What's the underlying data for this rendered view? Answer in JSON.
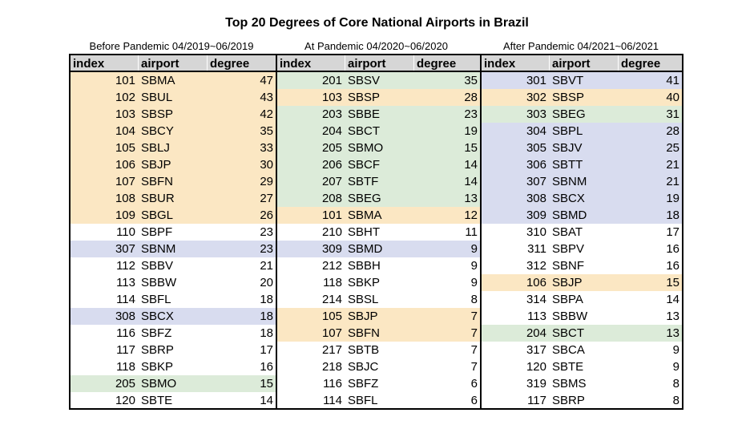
{
  "title": "Top 20 Degrees of Core National Airports in Brazil",
  "colors": {
    "yellow": "#fbe7c3",
    "green": "#dcebd9",
    "blue": "#d8dcef",
    "header": "#d6d6d6"
  },
  "column_headers": {
    "index": "index",
    "airport": "airport",
    "degree": "degree"
  },
  "panels": [
    {
      "period": "Before Pandemic 04/2019~06/2019",
      "rows": [
        {
          "index": "101",
          "airport": "SBMA",
          "degree": "47",
          "hl": "yellow"
        },
        {
          "index": "102",
          "airport": "SBUL",
          "degree": "43",
          "hl": "yellow"
        },
        {
          "index": "103",
          "airport": "SBSP",
          "degree": "42",
          "hl": "yellow"
        },
        {
          "index": "104",
          "airport": "SBCY",
          "degree": "35",
          "hl": "yellow"
        },
        {
          "index": "105",
          "airport": "SBLJ",
          "degree": "33",
          "hl": "yellow"
        },
        {
          "index": "106",
          "airport": "SBJP",
          "degree": "30",
          "hl": "yellow"
        },
        {
          "index": "107",
          "airport": "SBFN",
          "degree": "29",
          "hl": "yellow"
        },
        {
          "index": "108",
          "airport": "SBUR",
          "degree": "27",
          "hl": "yellow"
        },
        {
          "index": "109",
          "airport": "SBGL",
          "degree": "26",
          "hl": "yellow"
        },
        {
          "index": "110",
          "airport": "SBPF",
          "degree": "23",
          "hl": ""
        },
        {
          "index": "307",
          "airport": "SBNM",
          "degree": "23",
          "hl": "blue"
        },
        {
          "index": "112",
          "airport": "SBBV",
          "degree": "21",
          "hl": ""
        },
        {
          "index": "113",
          "airport": "SBBW",
          "degree": "20",
          "hl": ""
        },
        {
          "index": "114",
          "airport": "SBFL",
          "degree": "18",
          "hl": ""
        },
        {
          "index": "308",
          "airport": "SBCX",
          "degree": "18",
          "hl": "blue"
        },
        {
          "index": "116",
          "airport": "SBFZ",
          "degree": "18",
          "hl": ""
        },
        {
          "index": "117",
          "airport": "SBRP",
          "degree": "17",
          "hl": ""
        },
        {
          "index": "118",
          "airport": "SBKP",
          "degree": "16",
          "hl": ""
        },
        {
          "index": "205",
          "airport": "SBMO",
          "degree": "15",
          "hl": "green"
        },
        {
          "index": "120",
          "airport": "SBTE",
          "degree": "14",
          "hl": ""
        }
      ]
    },
    {
      "period": "At Pandemic 04/2020~06/2020",
      "rows": [
        {
          "index": "201",
          "airport": "SBSV",
          "degree": "35",
          "hl": "green"
        },
        {
          "index": "103",
          "airport": "SBSP",
          "degree": "28",
          "hl": "yellow"
        },
        {
          "index": "203",
          "airport": "SBBE",
          "degree": "23",
          "hl": "green"
        },
        {
          "index": "204",
          "airport": "SBCT",
          "degree": "19",
          "hl": "green"
        },
        {
          "index": "205",
          "airport": "SBMO",
          "degree": "15",
          "hl": "green"
        },
        {
          "index": "206",
          "airport": "SBCF",
          "degree": "14",
          "hl": "green"
        },
        {
          "index": "207",
          "airport": "SBTF",
          "degree": "14",
          "hl": "green"
        },
        {
          "index": "208",
          "airport": "SBEG",
          "degree": "13",
          "hl": "green"
        },
        {
          "index": "101",
          "airport": "SBMA",
          "degree": "12",
          "hl": "yellow"
        },
        {
          "index": "210",
          "airport": "SBHT",
          "degree": "11",
          "hl": ""
        },
        {
          "index": "309",
          "airport": "SBMD",
          "degree": "9",
          "hl": "blue"
        },
        {
          "index": "212",
          "airport": "SBBH",
          "degree": "9",
          "hl": ""
        },
        {
          "index": "118",
          "airport": "SBKP",
          "degree": "9",
          "hl": ""
        },
        {
          "index": "214",
          "airport": "SBSL",
          "degree": "8",
          "hl": ""
        },
        {
          "index": "105",
          "airport": "SBJP",
          "degree": "7",
          "hl": "yellow"
        },
        {
          "index": "107",
          "airport": "SBFN",
          "degree": "7",
          "hl": "yellow"
        },
        {
          "index": "217",
          "airport": "SBTB",
          "degree": "7",
          "hl": ""
        },
        {
          "index": "218",
          "airport": "SBJC",
          "degree": "7",
          "hl": ""
        },
        {
          "index": "116",
          "airport": "SBFZ",
          "degree": "6",
          "hl": ""
        },
        {
          "index": "114",
          "airport": "SBFL",
          "degree": "6",
          "hl": ""
        }
      ]
    },
    {
      "period": "After Pandemic 04/2021~06/2021",
      "rows": [
        {
          "index": "301",
          "airport": "SBVT",
          "degree": "41",
          "hl": "blue"
        },
        {
          "index": "302",
          "airport": "SBSP",
          "degree": "40",
          "hl": "yellow"
        },
        {
          "index": "303",
          "airport": "SBEG",
          "degree": "31",
          "hl": "green"
        },
        {
          "index": "304",
          "airport": "SBPL",
          "degree": "28",
          "hl": "blue"
        },
        {
          "index": "305",
          "airport": "SBJV",
          "degree": "25",
          "hl": "blue"
        },
        {
          "index": "306",
          "airport": "SBTT",
          "degree": "21",
          "hl": "blue"
        },
        {
          "index": "307",
          "airport": "SBNM",
          "degree": "21",
          "hl": "blue"
        },
        {
          "index": "308",
          "airport": "SBCX",
          "degree": "19",
          "hl": "blue"
        },
        {
          "index": "309",
          "airport": "SBMD",
          "degree": "18",
          "hl": "blue"
        },
        {
          "index": "310",
          "airport": "SBAT",
          "degree": "17",
          "hl": ""
        },
        {
          "index": "311",
          "airport": "SBPV",
          "degree": "16",
          "hl": ""
        },
        {
          "index": "312",
          "airport": "SBNF",
          "degree": "16",
          "hl": ""
        },
        {
          "index": "106",
          "airport": "SBJP",
          "degree": "15",
          "hl": "yellow"
        },
        {
          "index": "314",
          "airport": "SBPA",
          "degree": "14",
          "hl": ""
        },
        {
          "index": "113",
          "airport": "SBBW",
          "degree": "13",
          "hl": ""
        },
        {
          "index": "204",
          "airport": "SBCT",
          "degree": "13",
          "hl": "green"
        },
        {
          "index": "317",
          "airport": "SBCA",
          "degree": "9",
          "hl": ""
        },
        {
          "index": "120",
          "airport": "SBTE",
          "degree": "9",
          "hl": ""
        },
        {
          "index": "319",
          "airport": "SBMS",
          "degree": "8",
          "hl": ""
        },
        {
          "index": "117",
          "airport": "SBRP",
          "degree": "8",
          "hl": ""
        }
      ]
    }
  ]
}
